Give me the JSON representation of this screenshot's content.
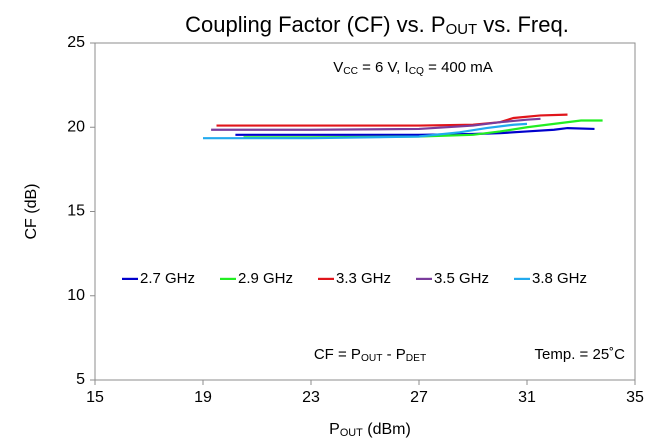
{
  "chart_data": {
    "type": "line",
    "title": [
      "Coupling Factor (CF) vs. P",
      "OUT",
      " vs. Freq."
    ],
    "x_label": [
      "P",
      "OUT",
      " (dBm)"
    ],
    "y_label": "CF (dB)",
    "annotations": [
      [
        "V",
        "CC",
        " = 6 V, I",
        "CQ",
        " = 400 mA"
      ],
      [
        "CF = P",
        "OUT",
        " - P",
        "DET"
      ],
      [
        "Temp. = 25˚C"
      ]
    ],
    "xlim": [
      15,
      35
    ],
    "xticks": [
      15,
      19,
      23,
      27,
      31,
      35
    ],
    "ylim": [
      5,
      25
    ],
    "yticks": [
      5,
      10,
      15,
      20,
      25
    ],
    "grid": false,
    "series": [
      {
        "name": "2.7 GHz",
        "color": "#0000cc",
        "x": [
          20.2,
          23,
          27,
          29,
          30,
          31,
          32,
          32.5,
          33.5
        ],
        "values": [
          19.55,
          19.55,
          19.55,
          19.6,
          19.65,
          19.75,
          19.85,
          19.95,
          19.9
        ]
      },
      {
        "name": "2.9 GHz",
        "color": "#22ee22",
        "x": [
          20.5,
          23,
          27,
          29,
          30,
          31,
          32,
          33,
          33.8
        ],
        "values": [
          19.4,
          19.4,
          19.45,
          19.55,
          19.75,
          20.0,
          20.2,
          20.4,
          20.4
        ]
      },
      {
        "name": "3.3 GHz",
        "color": "#e0151b",
        "x": [
          19.5,
          23,
          27,
          29,
          30,
          30.5,
          31.5,
          32.5
        ],
        "values": [
          20.1,
          20.1,
          20.1,
          20.15,
          20.3,
          20.55,
          20.7,
          20.75
        ]
      },
      {
        "name": "3.5 GHz",
        "color": "#7a3c9c",
        "x": [
          19.3,
          23,
          27,
          29,
          30,
          31,
          31.5
        ],
        "values": [
          19.85,
          19.85,
          19.9,
          20.1,
          20.3,
          20.45,
          20.5
        ]
      },
      {
        "name": "3.8 GHz",
        "color": "#22aaee",
        "x": [
          19.0,
          23,
          27,
          28.5,
          29.5,
          30.5,
          31
        ],
        "values": [
          19.35,
          19.35,
          19.45,
          19.7,
          19.95,
          20.15,
          20.2
        ]
      }
    ]
  }
}
